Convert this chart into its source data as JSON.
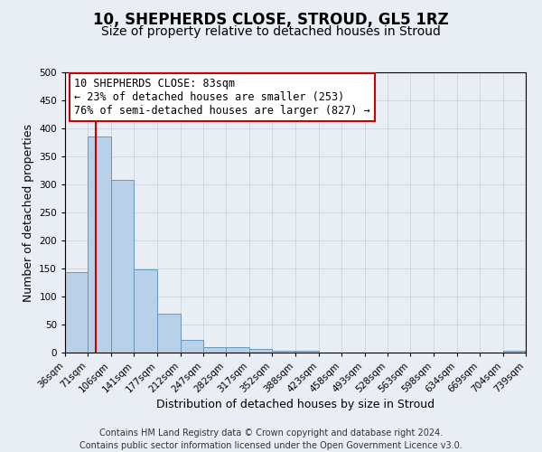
{
  "title": "10, SHEPHERDS CLOSE, STROUD, GL5 1RZ",
  "subtitle": "Size of property relative to detached houses in Stroud",
  "xlabel": "Distribution of detached houses by size in Stroud",
  "ylabel": "Number of detached properties",
  "bin_edges": [
    36,
    71,
    106,
    141,
    177,
    212,
    247,
    282,
    317,
    352,
    388,
    423,
    458,
    493,
    528,
    563,
    598,
    634,
    669,
    704,
    739
  ],
  "bar_heights": [
    143,
    385,
    308,
    149,
    70,
    22,
    10,
    10,
    7,
    4,
    3,
    0,
    0,
    0,
    0,
    0,
    0,
    0,
    0,
    4
  ],
  "bar_color": "#b8d0e8",
  "bar_edge_color": "#6699bb",
  "property_line_x": 83,
  "property_line_color": "#cc0000",
  "annotation_line1": "10 SHEPHERDS CLOSE: 83sqm",
  "annotation_line2": "← 23% of detached houses are smaller (253)",
  "annotation_line3": "76% of semi-detached houses are larger (827) →",
  "annotation_box_color": "#cc0000",
  "tick_labels": [
    "36sqm",
    "71sqm",
    "106sqm",
    "141sqm",
    "177sqm",
    "212sqm",
    "247sqm",
    "282sqm",
    "317sqm",
    "352sqm",
    "388sqm",
    "423sqm",
    "458sqm",
    "493sqm",
    "528sqm",
    "563sqm",
    "598sqm",
    "634sqm",
    "669sqm",
    "704sqm",
    "739sqm"
  ],
  "ylim": [
    0,
    500
  ],
  "yticks": [
    0,
    50,
    100,
    150,
    200,
    250,
    300,
    350,
    400,
    450,
    500
  ],
  "grid_color": "#c8d4e0",
  "background_color": "#e8eef4",
  "footer_text": "Contains HM Land Registry data © Crown copyright and database right 2024.\nContains public sector information licensed under the Open Government Licence v3.0.",
  "title_fontsize": 12,
  "subtitle_fontsize": 10,
  "axis_label_fontsize": 9,
  "tick_fontsize": 7.5,
  "footer_fontsize": 7,
  "annot_fontsize": 8.5
}
